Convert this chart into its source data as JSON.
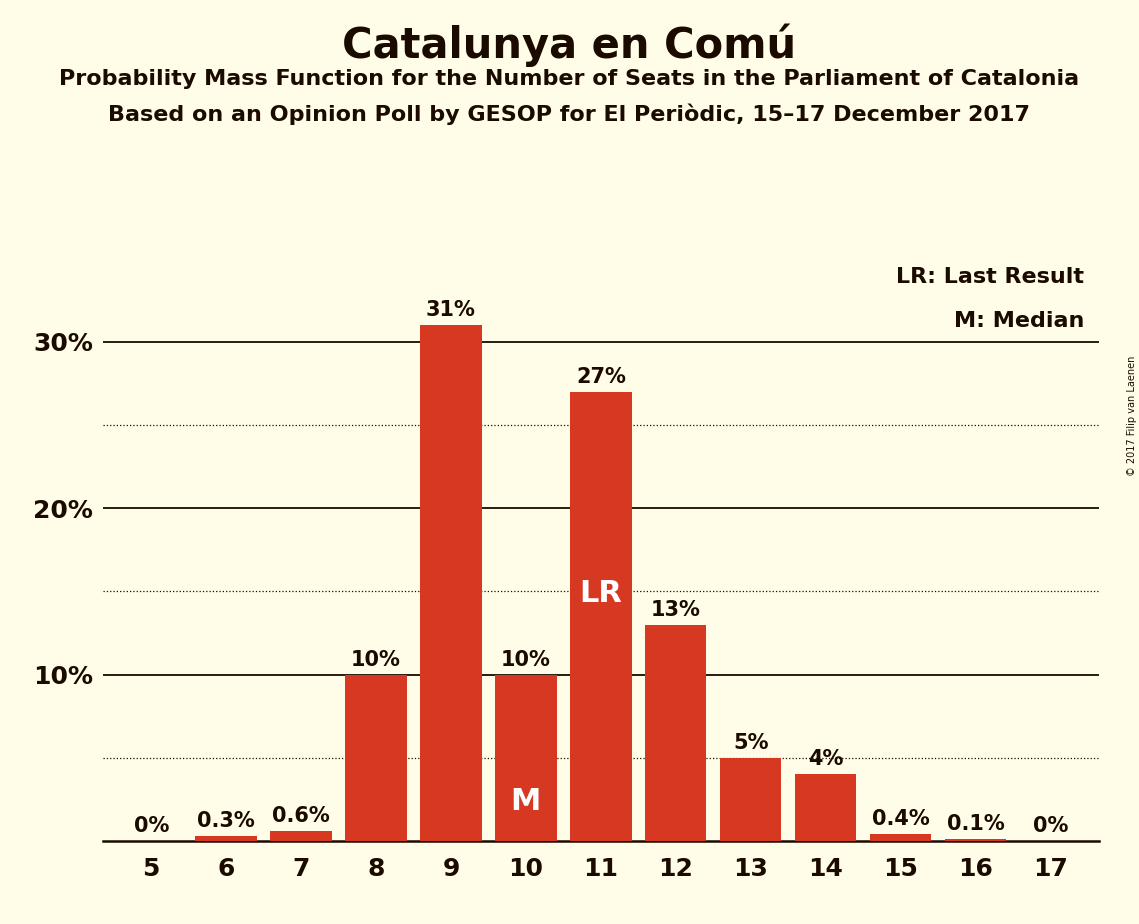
{
  "title": "Catalunya en Comú",
  "subtitle1": "Probability Mass Function for the Number of Seats in the Parliament of Catalonia",
  "subtitle2": "Based on an Opinion Poll by GESOP for El Periòdic, 15–17 December 2017",
  "copyright": "© 2017 Filip van Laenen",
  "categories": [
    5,
    6,
    7,
    8,
    9,
    10,
    11,
    12,
    13,
    14,
    15,
    16,
    17
  ],
  "values": [
    0.0,
    0.3,
    0.6,
    10.0,
    31.0,
    10.0,
    27.0,
    13.0,
    5.0,
    4.0,
    0.4,
    0.1,
    0.0
  ],
  "bar_color": "#d63822",
  "background_color": "#fffde8",
  "bar_labels": [
    "0%",
    "0.3%",
    "0.6%",
    "10%",
    "31%",
    "10%",
    "27%",
    "13%",
    "5%",
    "4%",
    "0.4%",
    "0.1%",
    "0%"
  ],
  "median_bar_index": 5,
  "lr_bar_index": 6,
  "median_label": "M",
  "lr_label": "LR",
  "legend_lr": "LR: Last Result",
  "legend_m": "M: Median",
  "yticks": [
    10,
    20,
    30
  ],
  "ytick_labels": [
    "10%",
    "20%",
    "30%"
  ],
  "dotted_lines": [
    5,
    15,
    25
  ],
  "solid_lines": [
    10,
    20,
    30
  ],
  "ylim": [
    0,
    35
  ],
  "title_fontsize": 30,
  "subtitle_fontsize": 16,
  "text_color": "#1a0a00",
  "bar_label_fontsize": 15,
  "axis_tick_fontsize": 18,
  "inner_label_fontsize": 22,
  "legend_fontsize": 16
}
